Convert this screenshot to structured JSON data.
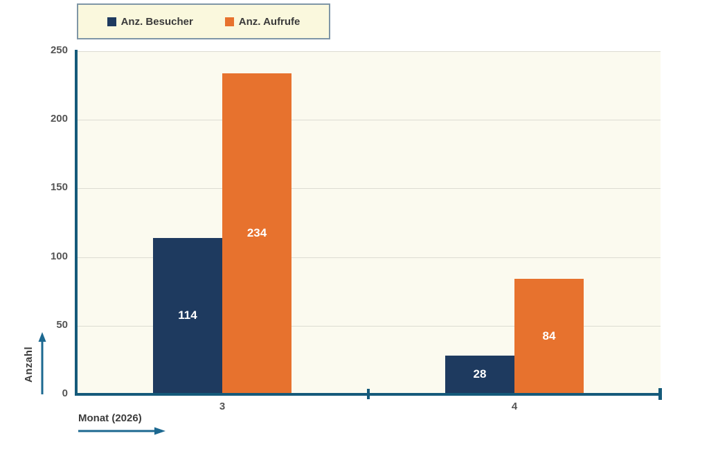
{
  "chart_data": {
    "type": "bar",
    "title": "",
    "categories": [
      "3",
      "4"
    ],
    "series": [
      {
        "name": "Anz. Besucher",
        "values": [
          114,
          28
        ],
        "color": "#1E3A5F"
      },
      {
        "name": "Anz. Aufrufe",
        "values": [
          234,
          84
        ],
        "color": "#E7722E"
      }
    ],
    "xlabel": "Monat (2026)",
    "ylabel": "Anzahl",
    "ylim": [
      0,
      250
    ],
    "yticks": [
      0,
      50,
      100,
      150,
      200,
      250
    ],
    "grid": true,
    "legend_position": "top",
    "bar_value_labels": true,
    "value_label_color": "#FFFFFF"
  },
  "style": {
    "page_bg": "#FFFFFF",
    "plot_bg": "#FBFAEF",
    "legend_bg": "#FAF8DD",
    "legend_border": "#7E96A6",
    "axis_color": "#155A7A",
    "arrow_color": "#1C6890",
    "grid_color": "#DCDCD2",
    "tick_label_color": "#545454",
    "axis_title_color": "#3C3C3C",
    "legend_text_color": "#3A3A3A"
  }
}
